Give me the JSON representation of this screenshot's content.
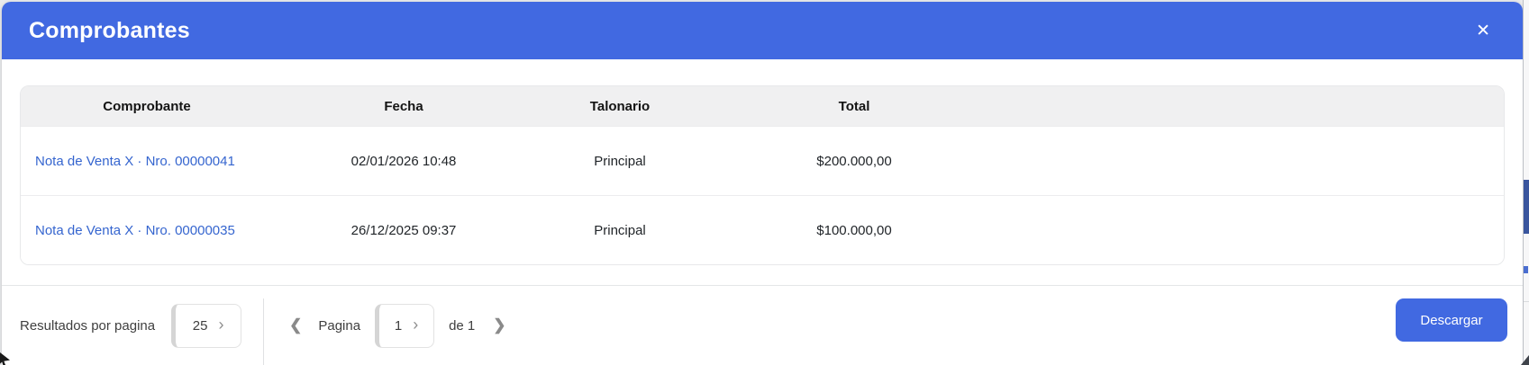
{
  "window": {
    "title": "Comprobantes"
  },
  "icons": {
    "close": "✕",
    "chevron_left": "❮",
    "chevron_right": "❯",
    "select_chevron": "›"
  },
  "colors": {
    "primary_blue": "#4169e1",
    "link_blue": "#3565cf",
    "table_header_bg": "#f0f0f1",
    "row_divider": "#ececee"
  },
  "table": {
    "columns": [
      "Comprobante",
      "Fecha",
      "Talonario",
      "Total"
    ],
    "rows": [
      {
        "comprobante": "Nota de Venta X · Nro. 00000041",
        "fecha": "02/01/2026 10:48",
        "talonario": "Principal",
        "total": "$200.000,00"
      },
      {
        "comprobante": "Nota de Venta X · Nro. 00000035",
        "fecha": "26/12/2025 09:37",
        "talonario": "Principal",
        "total": "$100.000,00"
      }
    ]
  },
  "pagination": {
    "results_per_page_label": "Resultados por pagina",
    "results_per_page_value": "25",
    "page_label": "Pagina",
    "current_page": "1",
    "total_pages_label": "de 1"
  },
  "actions": {
    "download_label": "Descargar"
  }
}
